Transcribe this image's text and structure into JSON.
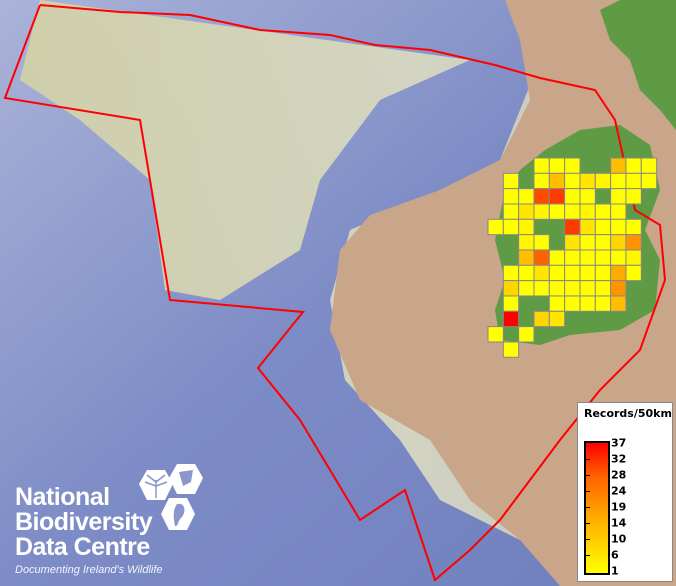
{
  "map": {
    "colors": {
      "sea_deep": "#7f8fc8",
      "shelf": "#d8d7b0",
      "land": "#c9a58a",
      "vegetation": "#5f9a45",
      "boundary": "#ff0000",
      "cell_border": "#888888"
    },
    "grid_rows": [
      [
        null,
        null,
        null,
        3,
        4,
        3,
        null,
        null,
        14,
        3,
        3
      ],
      [
        null,
        2,
        null,
        3,
        14,
        3,
        9,
        7,
        3,
        3,
        3
      ],
      [
        null,
        3,
        3,
        28,
        30,
        3,
        3,
        null,
        3,
        3,
        null
      ],
      [
        null,
        3,
        9,
        7,
        3,
        3,
        7,
        3,
        3,
        null,
        null
      ],
      [
        3,
        3,
        7,
        null,
        null,
        30,
        9,
        3,
        3,
        3,
        null
      ],
      [
        null,
        null,
        7,
        3,
        null,
        9,
        3,
        3,
        11,
        19,
        null
      ],
      [
        null,
        null,
        14,
        25,
        3,
        3,
        3,
        3,
        3,
        7,
        null
      ],
      [
        null,
        5,
        3,
        9,
        3,
        3,
        3,
        5,
        16,
        3,
        null
      ],
      [
        null,
        11,
        3,
        5,
        5,
        3,
        3,
        5,
        19,
        null,
        null
      ],
      [
        null,
        4,
        null,
        null,
        3,
        3,
        5,
        3,
        14,
        null,
        null
      ],
      [
        null,
        37,
        null,
        11,
        9,
        null,
        null,
        null,
        null,
        null,
        null
      ],
      [
        5,
        null,
        3,
        null,
        null,
        null,
        null,
        null,
        null,
        null,
        null
      ],
      [
        null,
        3,
        null,
        null,
        null,
        null,
        null,
        null,
        null,
        null,
        null
      ]
    ]
  },
  "legend": {
    "title": "Records/50km",
    "ticks": [
      "37",
      "32",
      "28",
      "24",
      "19",
      "14",
      "10",
      "6",
      "1"
    ],
    "min": 1,
    "max": 37
  },
  "logo": {
    "lines": [
      "National",
      "Biodiversity",
      "Data Centre"
    ],
    "tagline": "Documenting Ireland's Wildlife"
  }
}
